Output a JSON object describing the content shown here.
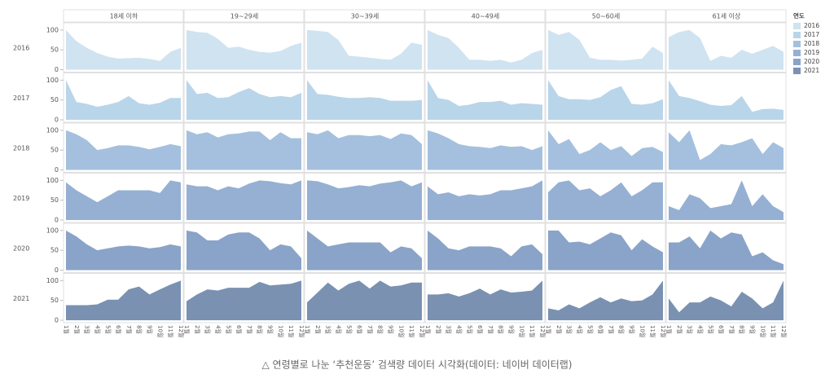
{
  "chart_data": {
    "type": "area",
    "categories": [
      "1월",
      "2월",
      "3월",
      "4월",
      "5월",
      "6월",
      "7월",
      "8월",
      "9월",
      "10월",
      "11월",
      "12월"
    ],
    "columns": [
      "18세 이하",
      "19~29세",
      "30~39세",
      "40~49세",
      "50~60세",
      "61세 이상"
    ],
    "legend_title": "연도",
    "ylim": [
      0,
      110
    ],
    "yticks": [
      0,
      50,
      100
    ],
    "caption": "△ 연령별로 나눈 ‘추천운동’ 검색량 데이터 시각화(데이터: 네이버 데이터랩)",
    "series": [
      {
        "name": "2016",
        "color": "#cfe3f1",
        "values": [
          [
            100,
            72,
            55,
            42,
            33,
            28,
            29,
            30,
            27,
            22,
            45,
            55
          ],
          [
            100,
            95,
            93,
            78,
            55,
            58,
            50,
            45,
            43,
            47,
            60,
            68
          ],
          [
            100,
            98,
            95,
            75,
            35,
            33,
            30,
            27,
            25,
            40,
            68,
            63
          ],
          [
            100,
            88,
            80,
            55,
            25,
            25,
            22,
            25,
            18,
            25,
            42,
            50
          ],
          [
            100,
            88,
            95,
            75,
            30,
            25,
            25,
            23,
            25,
            28,
            58,
            42
          ],
          [
            82,
            95,
            100,
            80,
            22,
            35,
            30,
            50,
            40,
            50,
            60,
            45
          ]
        ]
      },
      {
        "name": "2017",
        "color": "#b9d5ea",
        "values": [
          [
            100,
            45,
            40,
            33,
            38,
            45,
            60,
            42,
            38,
            43,
            55,
            55
          ],
          [
            100,
            65,
            68,
            55,
            57,
            70,
            80,
            65,
            57,
            60,
            57,
            68
          ],
          [
            100,
            65,
            63,
            58,
            55,
            55,
            57,
            55,
            48,
            48,
            48,
            50
          ],
          [
            100,
            55,
            50,
            35,
            38,
            45,
            45,
            48,
            38,
            42,
            40,
            38
          ],
          [
            100,
            60,
            52,
            52,
            50,
            57,
            75,
            85,
            40,
            38,
            42,
            52
          ],
          [
            100,
            60,
            55,
            47,
            38,
            35,
            37,
            60,
            20,
            27,
            28,
            25
          ]
        ]
      },
      {
        "name": "2018",
        "color": "#a4c0de",
        "values": [
          [
            100,
            90,
            75,
            50,
            55,
            62,
            62,
            58,
            52,
            58,
            65,
            60
          ],
          [
            100,
            90,
            95,
            82,
            90,
            92,
            97,
            97,
            75,
            95,
            80,
            80
          ],
          [
            95,
            90,
            100,
            80,
            88,
            88,
            85,
            88,
            78,
            92,
            88,
            65
          ],
          [
            100,
            92,
            80,
            65,
            60,
            58,
            55,
            62,
            58,
            60,
            50,
            60
          ],
          [
            100,
            65,
            78,
            40,
            50,
            70,
            50,
            60,
            35,
            55,
            58,
            45
          ],
          [
            95,
            70,
            100,
            25,
            40,
            65,
            62,
            70,
            80,
            40,
            70,
            55
          ]
        ]
      },
      {
        "name": "2019",
        "color": "#95b0d3",
        "values": [
          [
            95,
            75,
            60,
            45,
            60,
            75,
            75,
            75,
            75,
            68,
            100,
            95
          ],
          [
            90,
            85,
            85,
            75,
            85,
            80,
            92,
            100,
            98,
            93,
            90,
            100
          ],
          [
            100,
            98,
            90,
            80,
            83,
            88,
            85,
            92,
            95,
            100,
            85,
            95
          ],
          [
            85,
            65,
            70,
            60,
            65,
            62,
            65,
            75,
            75,
            80,
            85,
            100
          ],
          [
            70,
            95,
            100,
            75,
            80,
            60,
            75,
            95,
            60,
            75,
            95,
            95
          ],
          [
            35,
            25,
            65,
            55,
            30,
            35,
            40,
            100,
            35,
            65,
            35,
            20
          ]
        ]
      },
      {
        "name": "2020",
        "color": "#8aa3c8",
        "values": [
          [
            100,
            85,
            65,
            50,
            55,
            60,
            62,
            60,
            55,
            58,
            65,
            60
          ],
          [
            100,
            95,
            75,
            75,
            90,
            95,
            95,
            80,
            50,
            65,
            60,
            30
          ],
          [
            100,
            80,
            60,
            65,
            70,
            70,
            70,
            70,
            45,
            60,
            55,
            30
          ],
          [
            100,
            80,
            55,
            50,
            60,
            60,
            60,
            55,
            35,
            60,
            65,
            40
          ],
          [
            100,
            100,
            70,
            72,
            65,
            80,
            95,
            88,
            50,
            78,
            60,
            45
          ],
          [
            70,
            70,
            85,
            55,
            100,
            80,
            95,
            90,
            35,
            45,
            25,
            15
          ]
        ]
      },
      {
        "name": "2021",
        "color": "#7a91b2",
        "values": [
          [
            38,
            38,
            38,
            40,
            52,
            52,
            78,
            85,
            65,
            78,
            90,
            100
          ],
          [
            48,
            65,
            78,
            75,
            82,
            82,
            82,
            97,
            88,
            90,
            92,
            100
          ],
          [
            45,
            70,
            95,
            75,
            92,
            100,
            80,
            100,
            85,
            88,
            95,
            95
          ],
          [
            65,
            65,
            68,
            60,
            68,
            80,
            65,
            78,
            70,
            72,
            75,
            100
          ],
          [
            30,
            25,
            40,
            30,
            45,
            58,
            45,
            55,
            48,
            50,
            65,
            100
          ],
          [
            55,
            20,
            45,
            45,
            60,
            50,
            35,
            72,
            55,
            30,
            45,
            100
          ]
        ]
      }
    ]
  }
}
